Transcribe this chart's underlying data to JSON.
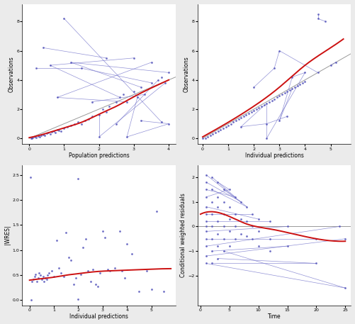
{
  "fig_bg": "#ebebeb",
  "panel_bg": "#ffffff",
  "dot_color": "#5555bb",
  "line_color": "#7777cc",
  "red_color": "#cc1111",
  "grey_line": "#999999",
  "panel1": {
    "xlabel": "Population predictions",
    "ylabel": "Observations",
    "xlim": [
      -0.2,
      4.2
    ],
    "ylim": [
      -0.4,
      9.2
    ],
    "xticks": [
      0,
      1,
      2,
      3,
      4
    ],
    "yticks": [
      0,
      2,
      4,
      6,
      8
    ],
    "points": [
      [
        0.05,
        0.0
      ],
      [
        0.08,
        0.0
      ],
      [
        0.1,
        0.05
      ],
      [
        0.15,
        0.1
      ],
      [
        0.2,
        0.05
      ],
      [
        0.25,
        0.15
      ],
      [
        0.3,
        0.1
      ],
      [
        0.35,
        0.2
      ],
      [
        0.4,
        0.25
      ],
      [
        0.45,
        0.2
      ],
      [
        0.5,
        0.35
      ],
      [
        0.55,
        0.4
      ],
      [
        0.6,
        0.3
      ],
      [
        0.65,
        0.45
      ],
      [
        0.7,
        0.5
      ],
      [
        0.75,
        0.4
      ],
      [
        0.8,
        0.6
      ],
      [
        0.85,
        0.55
      ],
      [
        0.9,
        0.5
      ],
      [
        1.0,
        0.7
      ],
      [
        1.1,
        0.8
      ],
      [
        1.2,
        0.9
      ],
      [
        1.3,
        1.0
      ],
      [
        1.4,
        1.1
      ],
      [
        1.5,
        1.0
      ],
      [
        1.6,
        1.2
      ],
      [
        1.7,
        1.3
      ],
      [
        1.8,
        1.5
      ],
      [
        2.0,
        1.6
      ],
      [
        2.1,
        2.0
      ],
      [
        2.2,
        1.8
      ],
      [
        2.3,
        2.2
      ],
      [
        2.5,
        2.5
      ],
      [
        2.6,
        2.8
      ],
      [
        2.7,
        3.0
      ],
      [
        2.8,
        2.5
      ],
      [
        3.0,
        3.2
      ],
      [
        3.1,
        2.8
      ],
      [
        3.2,
        3.5
      ],
      [
        3.3,
        3.0
      ],
      [
        3.5,
        3.8
      ],
      [
        3.7,
        4.0
      ],
      [
        3.8,
        4.2
      ],
      [
        3.9,
        3.8
      ],
      [
        4.0,
        4.5
      ],
      [
        0.2,
        4.8
      ],
      [
        0.4,
        6.2
      ],
      [
        0.6,
        5.0
      ],
      [
        0.8,
        2.8
      ],
      [
        1.0,
        8.2
      ],
      [
        1.2,
        5.2
      ],
      [
        1.5,
        4.8
      ],
      [
        1.8,
        2.5
      ],
      [
        2.0,
        0.1
      ],
      [
        2.2,
        5.5
      ],
      [
        2.5,
        1.0
      ],
      [
        2.8,
        0.1
      ],
      [
        3.0,
        5.5
      ],
      [
        3.2,
        1.2
      ],
      [
        3.5,
        5.2
      ],
      [
        3.8,
        1.1
      ],
      [
        4.0,
        1.0
      ]
    ],
    "connected_pairs": [
      [
        [
          0.2,
          4.8
        ],
        [
          1.5,
          4.8
        ]
      ],
      [
        [
          0.4,
          6.2
        ],
        [
          2.2,
          5.5
        ]
      ],
      [
        [
          0.6,
          5.0
        ],
        [
          3.0,
          5.5
        ]
      ],
      [
        [
          0.8,
          2.8
        ],
        [
          3.5,
          5.2
        ]
      ],
      [
        [
          1.0,
          8.2
        ],
        [
          3.8,
          1.1
        ]
      ],
      [
        [
          1.2,
          5.2
        ],
        [
          4.0,
          4.5
        ]
      ],
      [
        [
          1.8,
          2.5
        ],
        [
          3.3,
          3.0
        ]
      ],
      [
        [
          2.0,
          0.1
        ],
        [
          3.9,
          3.8
        ]
      ],
      [
        [
          2.5,
          1.0
        ],
        [
          3.7,
          4.0
        ]
      ],
      [
        [
          2.8,
          0.1
        ],
        [
          4.0,
          1.0
        ]
      ],
      [
        [
          3.2,
          1.2
        ],
        [
          4.0,
          1.0
        ]
      ],
      [
        [
          1.5,
          4.8
        ],
        [
          3.5,
          3.8
        ]
      ],
      [
        [
          0.8,
          2.8
        ],
        [
          2.8,
          2.5
        ]
      ],
      [
        [
          1.2,
          5.2
        ],
        [
          3.2,
          3.5
        ]
      ],
      [
        [
          0.6,
          5.0
        ],
        [
          2.6,
          2.8
        ]
      ],
      [
        [
          2.0,
          0.1
        ],
        [
          2.0,
          1.6
        ]
      ],
      [
        [
          2.8,
          0.1
        ],
        [
          3.1,
          2.8
        ]
      ]
    ],
    "trend_x": [
      0.0,
      4.2
    ],
    "trend_y": [
      0.0,
      4.2
    ],
    "smooth_x": [
      0.0,
      0.5,
      1.0,
      1.5,
      2.0,
      2.5,
      3.0,
      3.5,
      4.0
    ],
    "smooth_y": [
      0.05,
      0.35,
      0.72,
      1.1,
      1.65,
      2.2,
      2.85,
      3.45,
      4.0
    ]
  },
  "panel2": {
    "xlabel": "Individual predictions",
    "ylabel": "Observations",
    "xlim": [
      -0.2,
      5.8
    ],
    "ylim": [
      -0.4,
      9.2
    ],
    "xticks": [
      0,
      1,
      2,
      3,
      4,
      5
    ],
    "yticks": [
      0,
      2,
      4,
      6,
      8
    ],
    "points": [
      [
        0.0,
        0.0
      ],
      [
        0.1,
        0.0
      ],
      [
        0.2,
        0.1
      ],
      [
        0.3,
        0.2
      ],
      [
        0.4,
        0.3
      ],
      [
        0.5,
        0.4
      ],
      [
        0.6,
        0.5
      ],
      [
        0.7,
        0.6
      ],
      [
        0.8,
        0.7
      ],
      [
        0.9,
        0.8
      ],
      [
        1.0,
        0.9
      ],
      [
        1.1,
        1.0
      ],
      [
        1.2,
        1.1
      ],
      [
        1.3,
        1.2
      ],
      [
        1.4,
        1.3
      ],
      [
        1.5,
        1.4
      ],
      [
        1.6,
        1.5
      ],
      [
        1.7,
        1.6
      ],
      [
        1.8,
        1.7
      ],
      [
        1.9,
        1.8
      ],
      [
        2.0,
        1.9
      ],
      [
        2.1,
        2.0
      ],
      [
        2.2,
        2.1
      ],
      [
        2.3,
        2.2
      ],
      [
        2.4,
        2.3
      ],
      [
        2.5,
        2.4
      ],
      [
        2.6,
        2.5
      ],
      [
        2.7,
        2.6
      ],
      [
        2.8,
        2.7
      ],
      [
        2.9,
        2.8
      ],
      [
        3.0,
        2.9
      ],
      [
        3.1,
        3.0
      ],
      [
        3.2,
        3.1
      ],
      [
        3.3,
        3.2
      ],
      [
        3.4,
        3.3
      ],
      [
        3.5,
        3.4
      ],
      [
        3.6,
        3.5
      ],
      [
        3.7,
        3.6
      ],
      [
        3.8,
        3.7
      ],
      [
        3.9,
        3.8
      ],
      [
        4.0,
        3.9
      ],
      [
        4.5,
        4.5
      ],
      [
        5.0,
        5.0
      ],
      [
        2.5,
        1.0
      ],
      [
        2.8,
        4.8
      ],
      [
        3.0,
        1.2
      ],
      [
        3.5,
        4.2
      ],
      [
        4.0,
        4.5
      ],
      [
        4.5,
        8.2
      ],
      [
        4.8,
        8.0
      ],
      [
        3.0,
        6.0
      ],
      [
        2.5,
        0.0
      ],
      [
        5.2,
        5.2
      ],
      [
        1.5,
        0.8
      ],
      [
        2.0,
        3.5
      ],
      [
        3.3,
        1.5
      ],
      [
        4.5,
        8.5
      ]
    ],
    "connected_pairs": [
      [
        [
          4.5,
          8.2
        ],
        [
          4.5,
          8.5
        ]
      ],
      [
        [
          4.8,
          8.0
        ],
        [
          4.5,
          8.2
        ]
      ],
      [
        [
          3.0,
          6.0
        ],
        [
          2.8,
          4.8
        ]
      ],
      [
        [
          3.5,
          4.2
        ],
        [
          3.0,
          1.2
        ]
      ],
      [
        [
          4.0,
          4.5
        ],
        [
          2.5,
          0.0
        ]
      ],
      [
        [
          2.5,
          1.0
        ],
        [
          1.5,
          0.8
        ]
      ],
      [
        [
          3.3,
          1.5
        ],
        [
          2.5,
          1.0
        ]
      ],
      [
        [
          5.2,
          5.2
        ],
        [
          5.0,
          5.0
        ]
      ],
      [
        [
          2.0,
          3.5
        ],
        [
          2.8,
          4.8
        ]
      ],
      [
        [
          3.0,
          6.0
        ],
        [
          4.5,
          4.5
        ]
      ],
      [
        [
          3.5,
          4.2
        ],
        [
          4.0,
          4.5
        ]
      ],
      [
        [
          2.5,
          0.0
        ],
        [
          2.5,
          2.4
        ]
      ],
      [
        [
          1.5,
          0.8
        ],
        [
          2.5,
          2.4
        ]
      ],
      [
        [
          3.0,
          1.2
        ],
        [
          3.5,
          3.4
        ]
      ]
    ],
    "trend_x": [
      0.0,
      5.8
    ],
    "trend_y": [
      0.0,
      5.8
    ],
    "smooth_x": [
      0.0,
      1.0,
      2.0,
      3.0,
      4.0,
      5.0,
      5.5
    ],
    "smooth_y": [
      0.1,
      1.1,
      2.2,
      3.5,
      5.0,
      6.2,
      6.8
    ]
  },
  "panel3": {
    "xlabel": "Individual predictions",
    "ylabel": "|WRES|",
    "xlim": [
      -0.3,
      6.0
    ],
    "ylim": [
      -0.1,
      2.7
    ],
    "xticks": [
      0,
      1,
      2,
      3,
      4,
      5
    ],
    "yticks": [
      0.0,
      0.5,
      1.0,
      1.5,
      2.0,
      2.5
    ],
    "points": [
      [
        0.05,
        2.45
      ],
      [
        0.08,
        0.0
      ],
      [
        0.1,
        0.38
      ],
      [
        0.15,
        0.42
      ],
      [
        0.2,
        0.48
      ],
      [
        0.25,
        0.52
      ],
      [
        0.3,
        0.38
      ],
      [
        0.35,
        0.44
      ],
      [
        0.4,
        0.55
      ],
      [
        0.45,
        0.5
      ],
      [
        0.5,
        0.42
      ],
      [
        0.55,
        0.48
      ],
      [
        0.6,
        0.38
      ],
      [
        0.65,
        0.45
      ],
      [
        0.7,
        0.42
      ],
      [
        0.75,
        0.5
      ],
      [
        0.8,
        0.55
      ],
      [
        0.9,
        0.58
      ],
      [
        1.0,
        0.48
      ],
      [
        1.1,
        1.2
      ],
      [
        1.2,
        0.65
      ],
      [
        1.3,
        0.55
      ],
      [
        1.4,
        0.48
      ],
      [
        1.5,
        1.35
      ],
      [
        1.6,
        0.85
      ],
      [
        1.7,
        0.8
      ],
      [
        1.8,
        0.32
      ],
      [
        1.9,
        0.45
      ],
      [
        2.0,
        0.02
      ],
      [
        2.0,
        2.42
      ],
      [
        2.1,
        0.52
      ],
      [
        2.2,
        1.05
      ],
      [
        2.3,
        1.22
      ],
      [
        2.4,
        0.58
      ],
      [
        2.5,
        0.38
      ],
      [
        2.6,
        0.62
      ],
      [
        2.7,
        0.32
      ],
      [
        2.8,
        0.28
      ],
      [
        2.9,
        0.55
      ],
      [
        3.0,
        1.38
      ],
      [
        3.1,
        1.25
      ],
      [
        3.2,
        0.62
      ],
      [
        3.3,
        0.58
      ],
      [
        3.5,
        0.65
      ],
      [
        3.7,
        1.38
      ],
      [
        3.8,
        0.58
      ],
      [
        3.9,
        0.45
      ],
      [
        4.0,
        1.12
      ],
      [
        4.2,
        0.92
      ],
      [
        4.5,
        0.18
      ],
      [
        4.8,
        0.58
      ],
      [
        5.0,
        0.22
      ],
      [
        5.2,
        1.78
      ],
      [
        5.5,
        0.18
      ]
    ],
    "smooth_x": [
      0.0,
      0.5,
      1.0,
      1.5,
      2.0,
      2.5,
      3.0,
      3.5,
      4.0,
      4.5,
      5.0,
      5.8
    ],
    "smooth_y": [
      0.4,
      0.43,
      0.46,
      0.5,
      0.53,
      0.56,
      0.58,
      0.59,
      0.6,
      0.61,
      0.62,
      0.63
    ]
  },
  "panel4": {
    "xlabel": "Time",
    "ylabel": "Conditional weighted residuals",
    "xlim": [
      -0.5,
      26
    ],
    "ylim": [
      -3.2,
      2.5
    ],
    "xticks": [
      0,
      5,
      10,
      15,
      20,
      25
    ],
    "yticks": [
      -2,
      -1,
      0,
      1,
      2
    ],
    "points": [
      [
        1,
        2.1
      ],
      [
        1,
        1.8
      ],
      [
        1,
        1.5
      ],
      [
        1,
        1.2
      ],
      [
        1,
        0.8
      ],
      [
        1,
        0.5
      ],
      [
        1,
        0.2
      ],
      [
        1,
        0.0
      ],
      [
        1,
        -0.2
      ],
      [
        1,
        -0.5
      ],
      [
        1,
        -0.8
      ],
      [
        1,
        -1.2
      ],
      [
        1,
        -1.5
      ],
      [
        2,
        2.0
      ],
      [
        2,
        1.5
      ],
      [
        2,
        1.0
      ],
      [
        2,
        0.5
      ],
      [
        2,
        0.0
      ],
      [
        2,
        -0.5
      ],
      [
        2,
        -1.0
      ],
      [
        2,
        -1.5
      ],
      [
        3,
        1.8
      ],
      [
        3,
        1.2
      ],
      [
        3,
        0.8
      ],
      [
        3,
        0.2
      ],
      [
        3,
        -0.3
      ],
      [
        3,
        -0.8
      ],
      [
        3,
        -1.3
      ],
      [
        4,
        1.5
      ],
      [
        4,
        1.0
      ],
      [
        4,
        0.5
      ],
      [
        4,
        0.0
      ],
      [
        4,
        -0.5
      ],
      [
        4,
        -1.0
      ],
      [
        5,
        1.5
      ],
      [
        5,
        0.8
      ],
      [
        5,
        0.3
      ],
      [
        5,
        -0.2
      ],
      [
        5,
        -0.8
      ],
      [
        6,
        1.2
      ],
      [
        6,
        0.5
      ],
      [
        6,
        0.0
      ],
      [
        6,
        -0.5
      ],
      [
        7,
        1.0
      ],
      [
        7,
        0.3
      ],
      [
        7,
        -0.3
      ],
      [
        8,
        0.8
      ],
      [
        8,
        0.2
      ],
      [
        8,
        -0.4
      ],
      [
        9,
        0.5
      ],
      [
        9,
        0.0
      ],
      [
        9,
        -0.5
      ],
      [
        10,
        0.3
      ],
      [
        10,
        -0.2
      ],
      [
        10,
        -0.8
      ],
      [
        12,
        0.2
      ],
      [
        12,
        -0.5
      ],
      [
        12,
        -1.0
      ],
      [
        15,
        0.0
      ],
      [
        15,
        -0.8
      ],
      [
        20,
        -0.5
      ],
      [
        20,
        -1.5
      ],
      [
        24,
        0.0
      ],
      [
        25,
        -0.5
      ],
      [
        25,
        -2.5
      ]
    ],
    "connected_pairs": [
      [
        [
          1,
          2.1
        ],
        [
          8,
          0.8
        ]
      ],
      [
        [
          1,
          1.8
        ],
        [
          7,
          1.0
        ]
      ],
      [
        [
          1,
          1.5
        ],
        [
          6,
          1.2
        ]
      ],
      [
        [
          1,
          1.2
        ],
        [
          5,
          1.5
        ]
      ],
      [
        [
          1,
          0.8
        ],
        [
          10,
          0.3
        ]
      ],
      [
        [
          1,
          0.5
        ],
        [
          9,
          0.5
        ]
      ],
      [
        [
          1,
          0.2
        ],
        [
          12,
          0.2
        ]
      ],
      [
        [
          1,
          -0.2
        ],
        [
          15,
          0.0
        ]
      ],
      [
        [
          1,
          -0.5
        ],
        [
          20,
          -0.5
        ]
      ],
      [
        [
          1,
          -0.8
        ],
        [
          24,
          0.0
        ]
      ],
      [
        [
          1,
          -1.2
        ],
        [
          25,
          -0.5
        ]
      ],
      [
        [
          1,
          -1.5
        ],
        [
          25,
          -2.5
        ]
      ],
      [
        [
          2,
          2.0
        ],
        [
          6,
          1.2
        ]
      ],
      [
        [
          2,
          1.5
        ],
        [
          8,
          0.8
        ]
      ],
      [
        [
          2,
          -1.0
        ],
        [
          15,
          -0.8
        ]
      ],
      [
        [
          2,
          -1.5
        ],
        [
          20,
          -1.5
        ]
      ],
      [
        [
          3,
          1.8
        ],
        [
          5,
          1.5
        ]
      ],
      [
        [
          3,
          -1.3
        ],
        [
          20,
          -1.5
        ]
      ],
      [
        [
          4,
          1.5
        ],
        [
          7,
          1.0
        ]
      ],
      [
        [
          4,
          -1.0
        ],
        [
          25,
          -2.5
        ]
      ]
    ],
    "hline_y": 0.0,
    "smooth_x": [
      0.0,
      2.0,
      4.0,
      6.0,
      8.0,
      12.0,
      16.0,
      20.0,
      25.0
    ],
    "smooth_y": [
      0.5,
      0.6,
      0.5,
      0.3,
      0.1,
      -0.1,
      -0.3,
      -0.5,
      -0.6
    ]
  }
}
